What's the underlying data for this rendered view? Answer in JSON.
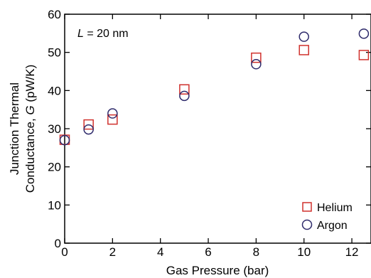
{
  "chart_data": {
    "type": "scatter",
    "title": "",
    "annotation": {
      "italic": "L",
      "rest": " = 20 nm"
    },
    "xlabel": "Gas Pressure (bar)",
    "ylabel_line1": "Junction Thermal",
    "ylabel_line2_pre": "Conductance, ",
    "ylabel_line2_italic": "G",
    "ylabel_line2_post": " (pW/K)",
    "xlim": [
      0,
      12.8
    ],
    "ylim": [
      0,
      60
    ],
    "xticks": [
      0,
      2,
      4,
      6,
      8,
      10,
      12
    ],
    "yticks": [
      0,
      10,
      20,
      30,
      40,
      50,
      60
    ],
    "legend_position": "bottom-right",
    "series": [
      {
        "name": "Helium",
        "marker": "square",
        "color": "#d0312d",
        "x": [
          0,
          1,
          2,
          5,
          8,
          10,
          12.5
        ],
        "y": [
          27.1,
          31.1,
          32.4,
          40.3,
          48.6,
          50.6,
          49.3
        ]
      },
      {
        "name": "Argon",
        "marker": "circle",
        "color": "#2e2a6b",
        "x": [
          0,
          1,
          2,
          5,
          8,
          10,
          12.5
        ],
        "y": [
          27.0,
          29.8,
          34.0,
          38.6,
          46.9,
          54.1,
          54.9
        ]
      }
    ]
  }
}
